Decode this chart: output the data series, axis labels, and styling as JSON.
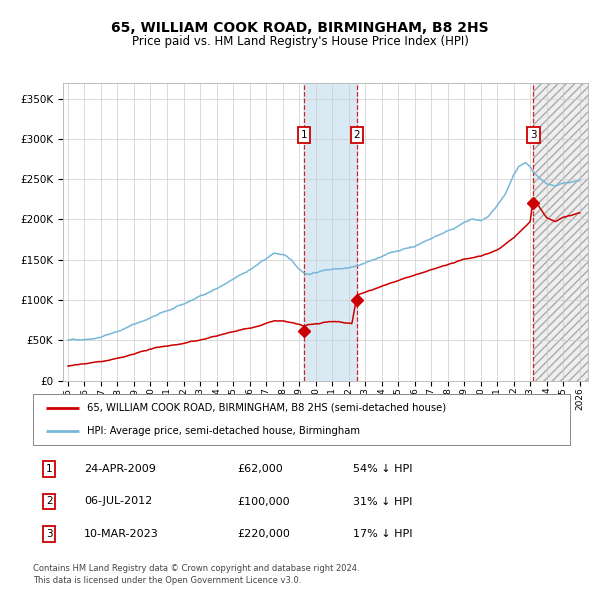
{
  "title": "65, WILLIAM COOK ROAD, BIRMINGHAM, B8 2HS",
  "subtitle": "Price paid vs. HM Land Registry's House Price Index (HPI)",
  "transactions": [
    {
      "num": 1,
      "date": "24-APR-2009",
      "date_x": 2009.31,
      "price": 62000,
      "hpi_pct": "54% ↓ HPI"
    },
    {
      "num": 2,
      "date": "06-JUL-2012",
      "date_x": 2012.51,
      "price": 100000,
      "hpi_pct": "31% ↓ HPI"
    },
    {
      "num": 3,
      "date": "10-MAR-2023",
      "date_x": 2023.19,
      "price": 220000,
      "hpi_pct": "17% ↓ HPI"
    }
  ],
  "hpi_color": "#7ab8d9",
  "price_color": "#cc0000",
  "bg_color": "#ffffff",
  "grid_color": "#cccccc",
  "shade1_x_start": 2009.31,
  "shade1_x_end": 2012.51,
  "shade1_color": "#daeaf5",
  "shade2_x_start": 2023.19,
  "shade2_x_end": 2026.5,
  "shade2_hatch_color": "#cccccc",
  "xmin": 1994.7,
  "xmax": 2026.5,
  "ymin": 0,
  "ymax": 370000,
  "yticks": [
    0,
    50000,
    100000,
    150000,
    200000,
    250000,
    300000,
    350000
  ],
  "xticks": [
    1995,
    1996,
    1997,
    1998,
    1999,
    2000,
    2001,
    2002,
    2003,
    2004,
    2005,
    2006,
    2007,
    2008,
    2009,
    2010,
    2011,
    2012,
    2013,
    2014,
    2015,
    2016,
    2017,
    2018,
    2019,
    2020,
    2021,
    2022,
    2023,
    2024,
    2025,
    2026
  ],
  "footer": "Contains HM Land Registry data © Crown copyright and database right 2024.\nThis data is licensed under the Open Government Licence v3.0.",
  "legend_line1": "65, WILLIAM COOK ROAD, BIRMINGHAM, B8 2HS (semi-detached house)",
  "legend_line2": "HPI: Average price, semi-detached house, Birmingham"
}
